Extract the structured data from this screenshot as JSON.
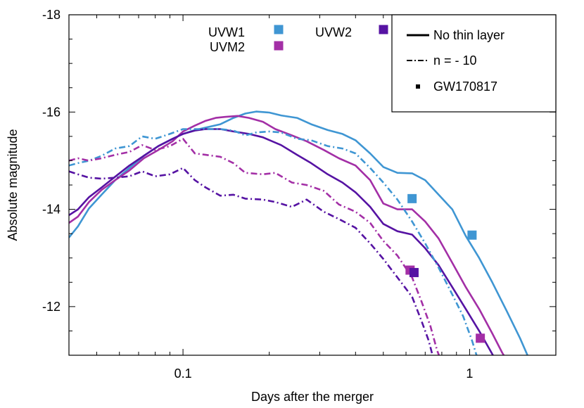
{
  "chart_data": {
    "type": "line",
    "xlabel": "Days after the merger",
    "ylabel": "Absolute magnitude",
    "xscale": "log",
    "xlim": [
      0.04,
      2.0
    ],
    "ylim": [
      -18,
      -11
    ],
    "y_inverted": true,
    "xticks": [
      {
        "value": 0.1,
        "label": "0.1"
      },
      {
        "value": 1,
        "label": "1"
      }
    ],
    "yticks": [
      {
        "value": -18,
        "label": "-18"
      },
      {
        "value": -16,
        "label": "-16"
      },
      {
        "value": -14,
        "label": "-14"
      },
      {
        "value": -12,
        "label": "-12"
      }
    ],
    "colors": {
      "UVW1": "#3f96d3",
      "UVM2": "#a32fa6",
      "UVW2": "#5613a3"
    },
    "band_legend": [
      {
        "name": "UVW1",
        "color": "#3f96d3"
      },
      {
        "name": "UVW2",
        "color": "#5613a3"
      },
      {
        "name": "UVM2",
        "color": "#a32fa6"
      }
    ],
    "style_legend": [
      {
        "label": "No thin layer",
        "style": "solid"
      },
      {
        "label": "n = - 10",
        "style": "dashdot"
      },
      {
        "label": "GW170817",
        "style": "point"
      }
    ],
    "series": [
      {
        "band": "UVW1",
        "style": "solid",
        "points": [
          [
            0.04,
            -13.42
          ],
          [
            0.043,
            -13.65
          ],
          [
            0.047,
            -14.02
          ],
          [
            0.052,
            -14.3
          ],
          [
            0.058,
            -14.6
          ],
          [
            0.065,
            -14.85
          ],
          [
            0.073,
            -15.1
          ],
          [
            0.082,
            -15.3
          ],
          [
            0.092,
            -15.45
          ],
          [
            0.1,
            -15.55
          ],
          [
            0.11,
            -15.63
          ],
          [
            0.12,
            -15.68
          ],
          [
            0.135,
            -15.75
          ],
          [
            0.15,
            -15.88
          ],
          [
            0.165,
            -15.97
          ],
          [
            0.18,
            -16.01
          ],
          [
            0.2,
            -15.99
          ],
          [
            0.22,
            -15.93
          ],
          [
            0.25,
            -15.88
          ],
          [
            0.28,
            -15.75
          ],
          [
            0.32,
            -15.63
          ],
          [
            0.36,
            -15.55
          ],
          [
            0.4,
            -15.42
          ],
          [
            0.45,
            -15.15
          ],
          [
            0.5,
            -14.87
          ],
          [
            0.56,
            -14.75
          ],
          [
            0.63,
            -14.74
          ],
          [
            0.7,
            -14.6
          ],
          [
            0.78,
            -14.3
          ],
          [
            0.87,
            -14.0
          ],
          [
            0.97,
            -13.45
          ],
          [
            1.08,
            -13.0
          ],
          [
            1.2,
            -12.5
          ],
          [
            1.35,
            -11.9
          ],
          [
            1.5,
            -11.35
          ],
          [
            1.62,
            -10.9
          ]
        ]
      },
      {
        "band": "UVM2",
        "style": "solid",
        "points": [
          [
            0.04,
            -13.72
          ],
          [
            0.043,
            -13.85
          ],
          [
            0.047,
            -14.15
          ],
          [
            0.052,
            -14.4
          ],
          [
            0.058,
            -14.6
          ],
          [
            0.065,
            -14.8
          ],
          [
            0.073,
            -15.05
          ],
          [
            0.082,
            -15.22
          ],
          [
            0.092,
            -15.4
          ],
          [
            0.1,
            -15.6
          ],
          [
            0.11,
            -15.72
          ],
          [
            0.12,
            -15.82
          ],
          [
            0.13,
            -15.88
          ],
          [
            0.14,
            -15.9
          ],
          [
            0.155,
            -15.92
          ],
          [
            0.17,
            -15.88
          ],
          [
            0.19,
            -15.8
          ],
          [
            0.21,
            -15.65
          ],
          [
            0.24,
            -15.52
          ],
          [
            0.27,
            -15.4
          ],
          [
            0.31,
            -15.22
          ],
          [
            0.35,
            -15.05
          ],
          [
            0.4,
            -14.9
          ],
          [
            0.45,
            -14.6
          ],
          [
            0.5,
            -14.12
          ],
          [
            0.56,
            -14.0
          ],
          [
            0.63,
            -14.0
          ],
          [
            0.7,
            -13.75
          ],
          [
            0.78,
            -13.4
          ],
          [
            0.87,
            -12.9
          ],
          [
            0.97,
            -12.4
          ],
          [
            1.08,
            -11.95
          ],
          [
            1.2,
            -11.45
          ],
          [
            1.3,
            -11.05
          ],
          [
            1.38,
            -10.8
          ]
        ]
      },
      {
        "band": "UVW2",
        "style": "solid",
        "points": [
          [
            0.04,
            -13.88
          ],
          [
            0.043,
            -14.0
          ],
          [
            0.047,
            -14.25
          ],
          [
            0.052,
            -14.45
          ],
          [
            0.058,
            -14.67
          ],
          [
            0.065,
            -14.9
          ],
          [
            0.073,
            -15.1
          ],
          [
            0.082,
            -15.3
          ],
          [
            0.092,
            -15.45
          ],
          [
            0.1,
            -15.55
          ],
          [
            0.11,
            -15.62
          ],
          [
            0.12,
            -15.65
          ],
          [
            0.135,
            -15.65
          ],
          [
            0.15,
            -15.6
          ],
          [
            0.17,
            -15.55
          ],
          [
            0.19,
            -15.48
          ],
          [
            0.22,
            -15.32
          ],
          [
            0.25,
            -15.12
          ],
          [
            0.28,
            -14.95
          ],
          [
            0.32,
            -14.72
          ],
          [
            0.36,
            -14.55
          ],
          [
            0.4,
            -14.35
          ],
          [
            0.45,
            -14.05
          ],
          [
            0.5,
            -13.7
          ],
          [
            0.56,
            -13.55
          ],
          [
            0.63,
            -13.48
          ],
          [
            0.7,
            -13.2
          ],
          [
            0.78,
            -12.85
          ],
          [
            0.87,
            -12.4
          ],
          [
            0.97,
            -11.95
          ],
          [
            1.08,
            -11.5
          ],
          [
            1.18,
            -11.1
          ],
          [
            1.26,
            -10.8
          ]
        ]
      },
      {
        "band": "UVW1",
        "style": "dashdot",
        "points": [
          [
            0.04,
            -14.9
          ],
          [
            0.043,
            -14.95
          ],
          [
            0.047,
            -15.0
          ],
          [
            0.052,
            -15.1
          ],
          [
            0.058,
            -15.25
          ],
          [
            0.065,
            -15.3
          ],
          [
            0.072,
            -15.5
          ],
          [
            0.08,
            -15.45
          ],
          [
            0.09,
            -15.55
          ],
          [
            0.1,
            -15.65
          ],
          [
            0.11,
            -15.65
          ],
          [
            0.12,
            -15.65
          ],
          [
            0.135,
            -15.65
          ],
          [
            0.15,
            -15.62
          ],
          [
            0.165,
            -15.52
          ],
          [
            0.18,
            -15.58
          ],
          [
            0.2,
            -15.6
          ],
          [
            0.22,
            -15.58
          ],
          [
            0.25,
            -15.45
          ],
          [
            0.28,
            -15.42
          ],
          [
            0.32,
            -15.3
          ],
          [
            0.36,
            -15.25
          ],
          [
            0.4,
            -15.15
          ],
          [
            0.45,
            -14.85
          ],
          [
            0.5,
            -14.55
          ],
          [
            0.56,
            -14.2
          ],
          [
            0.63,
            -13.75
          ],
          [
            0.7,
            -13.3
          ],
          [
            0.78,
            -12.8
          ],
          [
            0.87,
            -12.25
          ],
          [
            0.95,
            -11.8
          ],
          [
            1.02,
            -11.3
          ],
          [
            1.07,
            -10.9
          ]
        ]
      },
      {
        "band": "UVM2",
        "style": "dashdot",
        "points": [
          [
            0.04,
            -15.0
          ],
          [
            0.043,
            -15.05
          ],
          [
            0.047,
            -15.0
          ],
          [
            0.052,
            -15.05
          ],
          [
            0.058,
            -15.12
          ],
          [
            0.065,
            -15.18
          ],
          [
            0.072,
            -15.32
          ],
          [
            0.08,
            -15.22
          ],
          [
            0.09,
            -15.3
          ],
          [
            0.1,
            -15.45
          ],
          [
            0.11,
            -15.15
          ],
          [
            0.12,
            -15.12
          ],
          [
            0.135,
            -15.08
          ],
          [
            0.15,
            -14.95
          ],
          [
            0.165,
            -14.75
          ],
          [
            0.19,
            -14.72
          ],
          [
            0.21,
            -14.75
          ],
          [
            0.24,
            -14.55
          ],
          [
            0.27,
            -14.5
          ],
          [
            0.31,
            -14.38
          ],
          [
            0.35,
            -14.1
          ],
          [
            0.4,
            -13.95
          ],
          [
            0.45,
            -13.72
          ],
          [
            0.5,
            -13.35
          ],
          [
            0.56,
            -13.05
          ],
          [
            0.63,
            -12.6
          ],
          [
            0.68,
            -12.1
          ],
          [
            0.73,
            -11.6
          ],
          [
            0.77,
            -11.1
          ],
          [
            0.8,
            -10.85
          ]
        ]
      },
      {
        "band": "UVW2",
        "style": "dashdot",
        "points": [
          [
            0.04,
            -14.78
          ],
          [
            0.043,
            -14.72
          ],
          [
            0.047,
            -14.65
          ],
          [
            0.052,
            -14.63
          ],
          [
            0.058,
            -14.65
          ],
          [
            0.065,
            -14.68
          ],
          [
            0.072,
            -14.78
          ],
          [
            0.08,
            -14.68
          ],
          [
            0.09,
            -14.72
          ],
          [
            0.1,
            -14.85
          ],
          [
            0.11,
            -14.6
          ],
          [
            0.12,
            -14.45
          ],
          [
            0.135,
            -14.28
          ],
          [
            0.15,
            -14.3
          ],
          [
            0.165,
            -14.22
          ],
          [
            0.19,
            -14.2
          ],
          [
            0.21,
            -14.15
          ],
          [
            0.24,
            -14.05
          ],
          [
            0.27,
            -14.2
          ],
          [
            0.31,
            -13.95
          ],
          [
            0.35,
            -13.8
          ],
          [
            0.4,
            -13.62
          ],
          [
            0.45,
            -13.3
          ],
          [
            0.5,
            -12.98
          ],
          [
            0.56,
            -12.6
          ],
          [
            0.63,
            -12.2
          ],
          [
            0.68,
            -11.7
          ],
          [
            0.72,
            -11.3
          ],
          [
            0.75,
            -10.9
          ]
        ]
      }
    ],
    "observations": [
      {
        "band": "UVW1",
        "x": 0.63,
        "y": -14.22
      },
      {
        "band": "UVW1",
        "x": 1.02,
        "y": -13.47
      },
      {
        "band": "UVM2",
        "x": 0.62,
        "y": -12.75
      },
      {
        "band": "UVM2",
        "x": 1.09,
        "y": -11.35
      },
      {
        "band": "UVW2",
        "x": 0.64,
        "y": -12.7
      }
    ]
  }
}
